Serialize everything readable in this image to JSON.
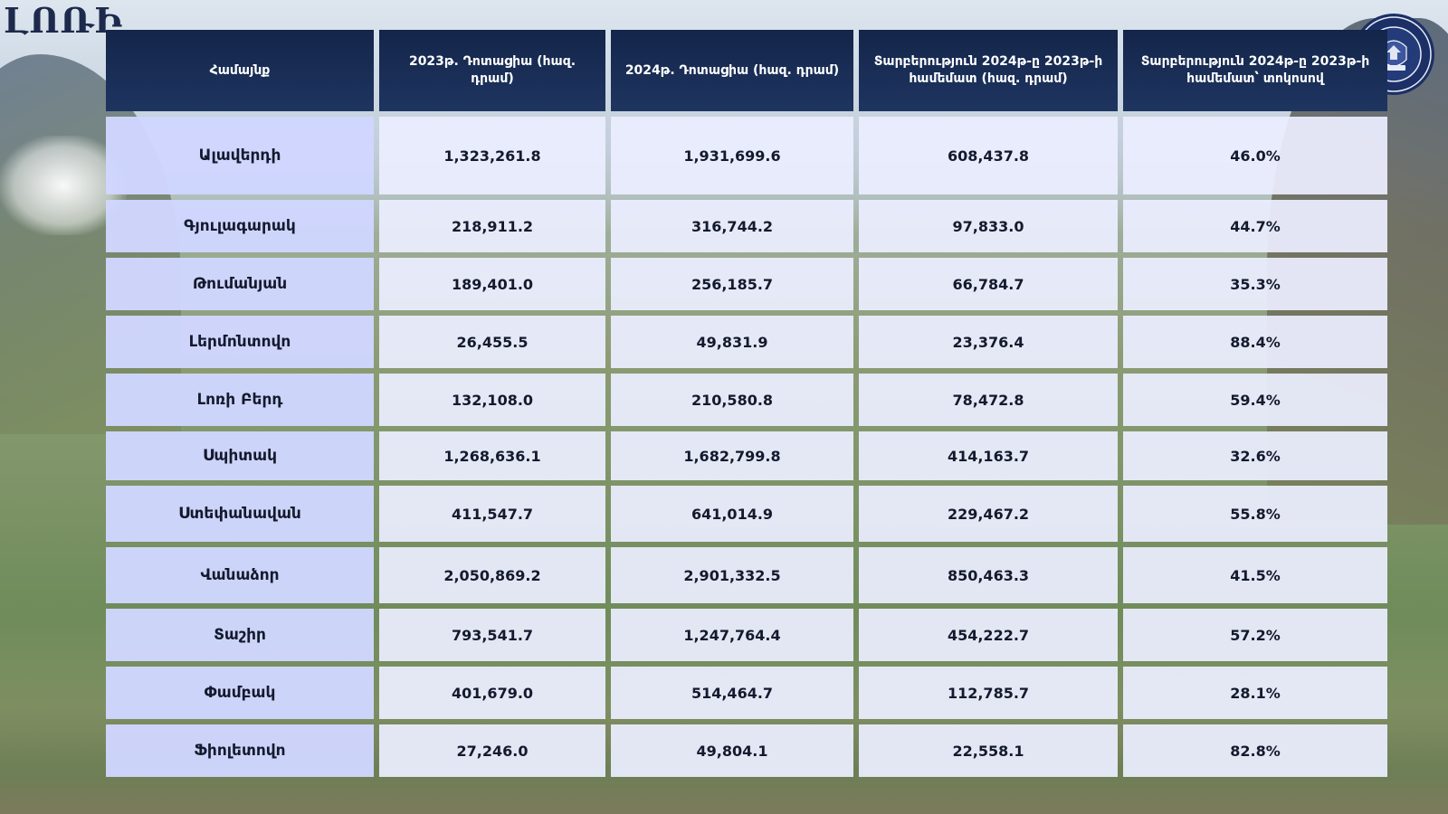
{
  "brand": "ԼՈՌԻ",
  "table": {
    "headers": [
      "Համայնք",
      "2023թ. Դոտացիա (հազ. դրամ)",
      "2024թ. Դոտացիա (հազ. դրամ)",
      "Տարբերություն 2024թ-ը 2023թ-ի համեմատ (հազ. դրամ)",
      "Տարբերություն 2024թ-ը 2023թ-ի համեմատ՝ տոկոսով"
    ],
    "rows": [
      [
        "Ալավերդի",
        "1,323,261.8",
        "1,931,699.6",
        "608,437.8",
        "46.0%"
      ],
      [
        "Գյուլագարակ",
        "218,911.2",
        "316,744.2",
        "97,833.0",
        "44.7%"
      ],
      [
        "Թումանյան",
        "189,401.0",
        "256,185.7",
        "66,784.7",
        "35.3%"
      ],
      [
        "Լերմոնտովո",
        "26,455.5",
        "49,831.9",
        "23,376.4",
        "88.4%"
      ],
      [
        "Լոռի Բերդ",
        "132,108.0",
        "210,580.8",
        "78,472.8",
        "59.4%"
      ],
      [
        "Սպիտակ",
        "1,268,636.1",
        "1,682,799.8",
        "414,163.7",
        "32.6%"
      ],
      [
        "Ստեփանավան",
        "411,547.7",
        "641,014.9",
        "229,467.2",
        "55.8%"
      ],
      [
        "Վանաձոր",
        "2,050,869.2",
        "2,901,332.5",
        "850,463.3",
        "41.5%"
      ],
      [
        "Տաշիր",
        "793,541.7",
        "1,247,764.4",
        "454,222.7",
        "57.2%"
      ],
      [
        "Փամբակ",
        "401,679.0",
        "514,464.7",
        "112,785.7",
        "28.1%"
      ],
      [
        "Ֆիոլետովո",
        "27,246.0",
        "49,804.1",
        "22,558.1",
        "82.8%"
      ]
    ]
  },
  "colors": {
    "header_bg": "#14254a",
    "name_cell_bg": "#d0d6ff",
    "value_cell_bg": "#eceeff",
    "brand_text": "#1d2a4d"
  },
  "icons": {
    "seal": "coat-of-arms-seal-icon"
  }
}
